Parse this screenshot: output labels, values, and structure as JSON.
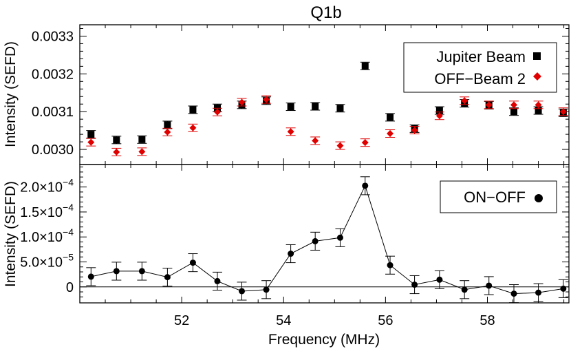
{
  "chart_data": [
    {
      "type": "scatter",
      "title": "Q1b",
      "xlabel": "",
      "ylabel": "Intensity (SEFD)",
      "xlim": [
        50.0,
        59.6
      ],
      "ylim": [
        0.00296,
        0.00333
      ],
      "ytick_labels": [
        "0.0030",
        "0.0031",
        "0.0032",
        "0.0033"
      ],
      "yticks": [
        0.003,
        0.0031,
        0.0032,
        0.0033
      ],
      "legend_position": "top-right",
      "series": [
        {
          "name": "Jupiter Beam",
          "color": "#000000",
          "marker": "square",
          "x": [
            50.22,
            50.72,
            51.22,
            51.72,
            52.22,
            52.7,
            53.18,
            53.66,
            54.14,
            54.62,
            55.11,
            55.6,
            56.09,
            56.57,
            57.06,
            57.55,
            58.03,
            58.52,
            59.0,
            59.49
          ],
          "y": [
            0.00304,
            0.003025,
            0.003026,
            0.003065,
            0.003105,
            0.00311,
            0.003118,
            0.003129,
            0.003113,
            0.003114,
            0.003109,
            0.003221,
            0.003085,
            0.003055,
            0.003103,
            0.003122,
            0.003117,
            0.0031,
            0.003103,
            0.003097
          ],
          "err": [
            1e-05,
            1e-05,
            1e-05,
            1e-05,
            1e-05,
            1e-05,
            1e-05,
            1e-05,
            1e-05,
            1e-05,
            1e-05,
            1e-05,
            1e-05,
            1e-05,
            1e-05,
            1e-05,
            1e-05,
            1e-05,
            1e-05,
            1e-05
          ]
        },
        {
          "name": "OFF−Beam 2",
          "color": "#e00000",
          "marker": "diamond",
          "x": [
            50.22,
            50.72,
            51.22,
            51.72,
            52.22,
            52.7,
            53.18,
            53.66,
            54.14,
            54.62,
            55.11,
            55.6,
            56.09,
            56.57,
            57.06,
            57.55,
            58.03,
            58.52,
            59.0,
            59.49
          ],
          "y": [
            0.003019,
            0.002993,
            0.002994,
            0.003046,
            0.003057,
            0.003099,
            0.003125,
            0.003132,
            0.003047,
            0.003023,
            0.00301,
            0.003018,
            0.003042,
            0.003051,
            0.003089,
            0.003129,
            0.003118,
            0.003118,
            0.003118,
            0.0031
          ],
          "err": [
            1e-05,
            1e-05,
            1e-05,
            1e-05,
            1e-05,
            1e-05,
            1e-05,
            1e-05,
            1e-05,
            1e-05,
            1e-05,
            1e-05,
            1e-05,
            1e-05,
            1e-05,
            1e-05,
            1e-05,
            1e-05,
            1e-05,
            1e-05
          ]
        }
      ]
    },
    {
      "type": "line",
      "title": "",
      "xlabel": "Frequency (MHz)",
      "ylabel": "Intensity (SEFD)",
      "xlim": [
        50.0,
        59.6
      ],
      "ylim": [
        -3.2e-05,
        0.000245
      ],
      "xtick_labels": [
        "52",
        "54",
        "56",
        "58"
      ],
      "xticks": [
        52,
        54,
        56,
        58
      ],
      "ytick_labels": [
        {
          "mant": "0",
          "exp": ""
        },
        {
          "mant": "5.0×10",
          "exp": "−5"
        },
        {
          "mant": "1.0×10",
          "exp": "−4"
        },
        {
          "mant": "1.5×10",
          "exp": "−4"
        },
        {
          "mant": "2.0×10",
          "exp": "−4"
        }
      ],
      "yticks": [
        0,
        5e-05,
        0.0001,
        0.00015,
        0.0002
      ],
      "zero_line": true,
      "legend_position": "top-right",
      "series": [
        {
          "name": "ON−OFF",
          "color": "#000000",
          "marker": "circle",
          "x": [
            50.22,
            50.72,
            51.22,
            51.72,
            52.22,
            52.7,
            53.18,
            53.66,
            54.14,
            54.62,
            55.11,
            55.6,
            56.09,
            56.57,
            57.06,
            57.55,
            58.03,
            58.52,
            59.0,
            59.49
          ],
          "y": [
            2.05e-05,
            3.15e-05,
            3.15e-05,
            1.95e-05,
            4.85e-05,
            1.15e-05,
            -8.5e-06,
            -5.5e-06,
            6.65e-05,
            9.15e-05,
            9.85e-05,
            0.0002025,
            4.35e-05,
            4.5e-06,
            1.45e-05,
            -5.5e-06,
            2.5e-06,
            -1.35e-05,
            -1.15e-05,
            -3.5e-06
          ],
          "err": [
            1.8e-05,
            1.8e-05,
            1.8e-05,
            1.8e-05,
            1.8e-05,
            1.8e-05,
            1.8e-05,
            1.8e-05,
            1.8e-05,
            1.8e-05,
            1.8e-05,
            1.8e-05,
            1.8e-05,
            1.8e-05,
            1.8e-05,
            1.8e-05,
            1.8e-05,
            1.8e-05,
            1.8e-05,
            1.8e-05
          ]
        }
      ]
    }
  ]
}
